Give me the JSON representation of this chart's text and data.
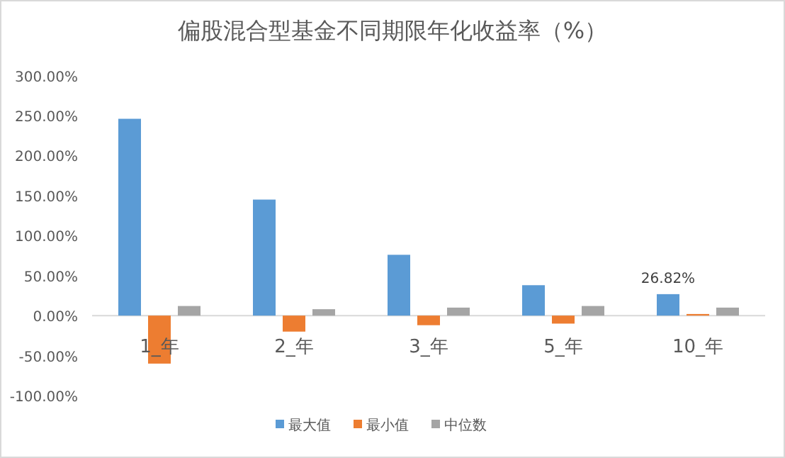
{
  "chart_data": {
    "type": "bar",
    "title": "偏股混合型基金不同期限年化收益率（%）",
    "categories": [
      "1_年",
      "2_年",
      "3_年",
      "5_年",
      "10_年"
    ],
    "series": [
      {
        "name": "最大值",
        "color": "#5b9bd5",
        "values": [
          246,
          145,
          76,
          38,
          26.82
        ],
        "value_labels": [
          null,
          null,
          null,
          null,
          "26.82%"
        ]
      },
      {
        "name": "最小值",
        "color": "#ed7d31",
        "values": [
          -60,
          -20,
          -12,
          -10,
          2
        ]
      },
      {
        "name": "中位数",
        "color": "#a5a5a5",
        "values": [
          12,
          8,
          10,
          12,
          10
        ]
      }
    ],
    "ylim": [
      -100,
      300
    ],
    "yticks": [
      {
        "value": -100,
        "label": "-100.00%"
      },
      {
        "value": -50,
        "label": "-50.00%"
      },
      {
        "value": 0,
        "label": "0.00%"
      },
      {
        "value": 50,
        "label": "50.00%"
      },
      {
        "value": 100,
        "label": "100.00%"
      },
      {
        "value": 150,
        "label": "150.00%"
      },
      {
        "value": 200,
        "label": "200.00%"
      },
      {
        "value": 250,
        "label": "250.00%"
      },
      {
        "value": 300,
        "label": "300.00%"
      }
    ],
    "grid": false,
    "legend": "bottom"
  }
}
